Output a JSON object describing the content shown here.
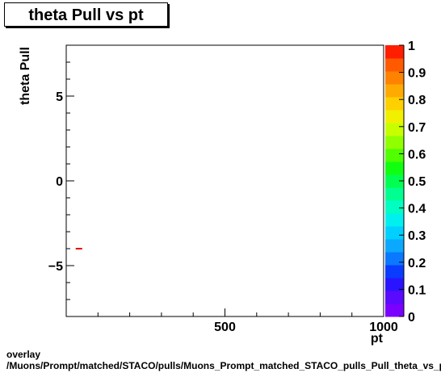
{
  "chart_data": {
    "type": "scatter",
    "title": "theta Pull vs pt",
    "xlabel": "pt",
    "ylabel": "theta Pull",
    "xlim": [
      0,
      1000
    ],
    "ylim": [
      -8,
      8
    ],
    "x_ticks": [
      500,
      1000
    ],
    "x_tick_labels": [
      "500",
      "1000"
    ],
    "y_ticks": [
      -5,
      0,
      5
    ],
    "y_tick_labels": [
      "−5",
      "0",
      "5"
    ],
    "points": [
      {
        "x": 40,
        "y": -4,
        "color": "#e60000"
      }
    ],
    "colorbar": {
      "min": 0,
      "max": 1,
      "labels": [
        "0",
        "0.1",
        "0.2",
        "0.3",
        "0.4",
        "0.5",
        "0.6",
        "0.7",
        "0.8",
        "0.9",
        "1"
      ],
      "colors": [
        "#7a00ff",
        "#5a0aff",
        "#2a14ff",
        "#0a3cff",
        "#0a78ff",
        "#0aa8ff",
        "#00d0ff",
        "#00f0f0",
        "#00ffc0",
        "#00ff90",
        "#00ff50",
        "#10ff10",
        "#50ff00",
        "#90ff00",
        "#c8ff00",
        "#f0f000",
        "#ffd000",
        "#ffaa00",
        "#ff8200",
        "#ff5a00",
        "#ff1e00"
      ]
    },
    "grid": false
  },
  "footer": {
    "line1": "overlay",
    "line2": "/Muons/Prompt/matched/STACO/pulls/Muons_Prompt_matched_STACO_pulls_Pull_theta_vs_pt"
  }
}
